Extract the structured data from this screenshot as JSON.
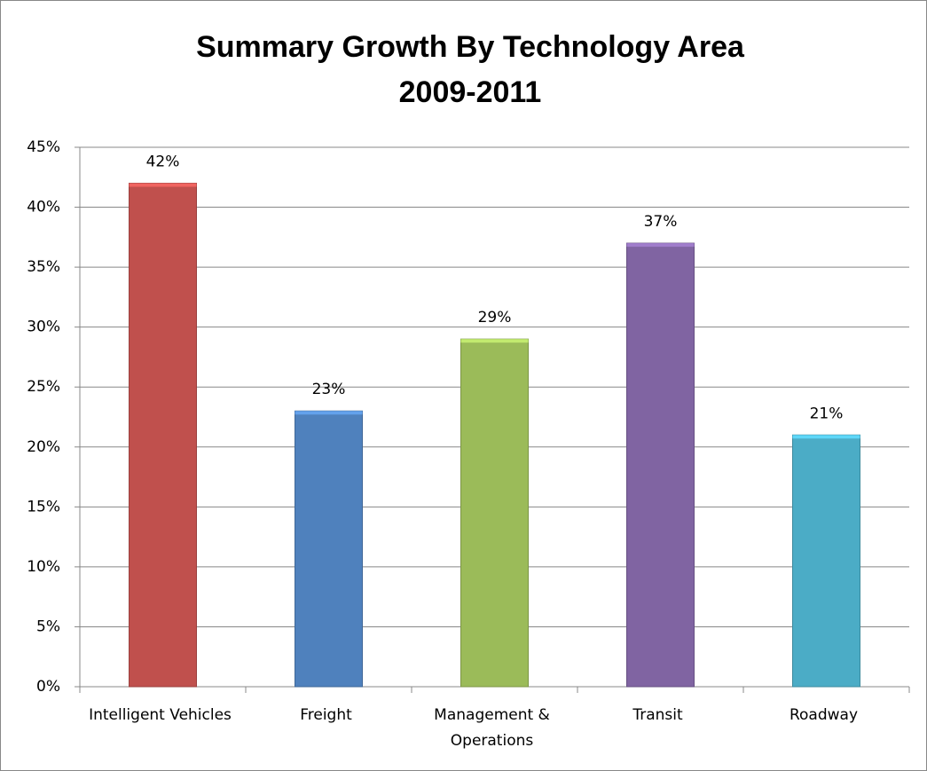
{
  "chart_data": {
    "type": "bar",
    "title": "Summary Growth By Technology Area",
    "subtitle": "2009-2011",
    "categories": [
      "Intelligent Vehicles",
      "Freight",
      "Management & Operations",
      "Transit",
      "Roadway"
    ],
    "values": [
      42,
      23,
      29,
      37,
      21
    ],
    "value_labels": [
      "42%",
      "23%",
      "29%",
      "37%",
      "21%"
    ],
    "colors": [
      "#c0504d",
      "#4f81bd",
      "#9bbb59",
      "#8064a2",
      "#4bacc6"
    ],
    "ylim": [
      0,
      45
    ],
    "yticks": [
      {
        "value": 0,
        "label": "0%"
      },
      {
        "value": 5,
        "label": "5%"
      },
      {
        "value": 10,
        "label": "10%"
      },
      {
        "value": 15,
        "label": "15%"
      },
      {
        "value": 20,
        "label": "20%"
      },
      {
        "value": 25,
        "label": "25%"
      },
      {
        "value": 30,
        "label": "30%"
      },
      {
        "value": 35,
        "label": "35%"
      },
      {
        "value": 40,
        "label": "40%"
      },
      {
        "value": 45,
        "label": "45%"
      }
    ],
    "grid": true
  }
}
